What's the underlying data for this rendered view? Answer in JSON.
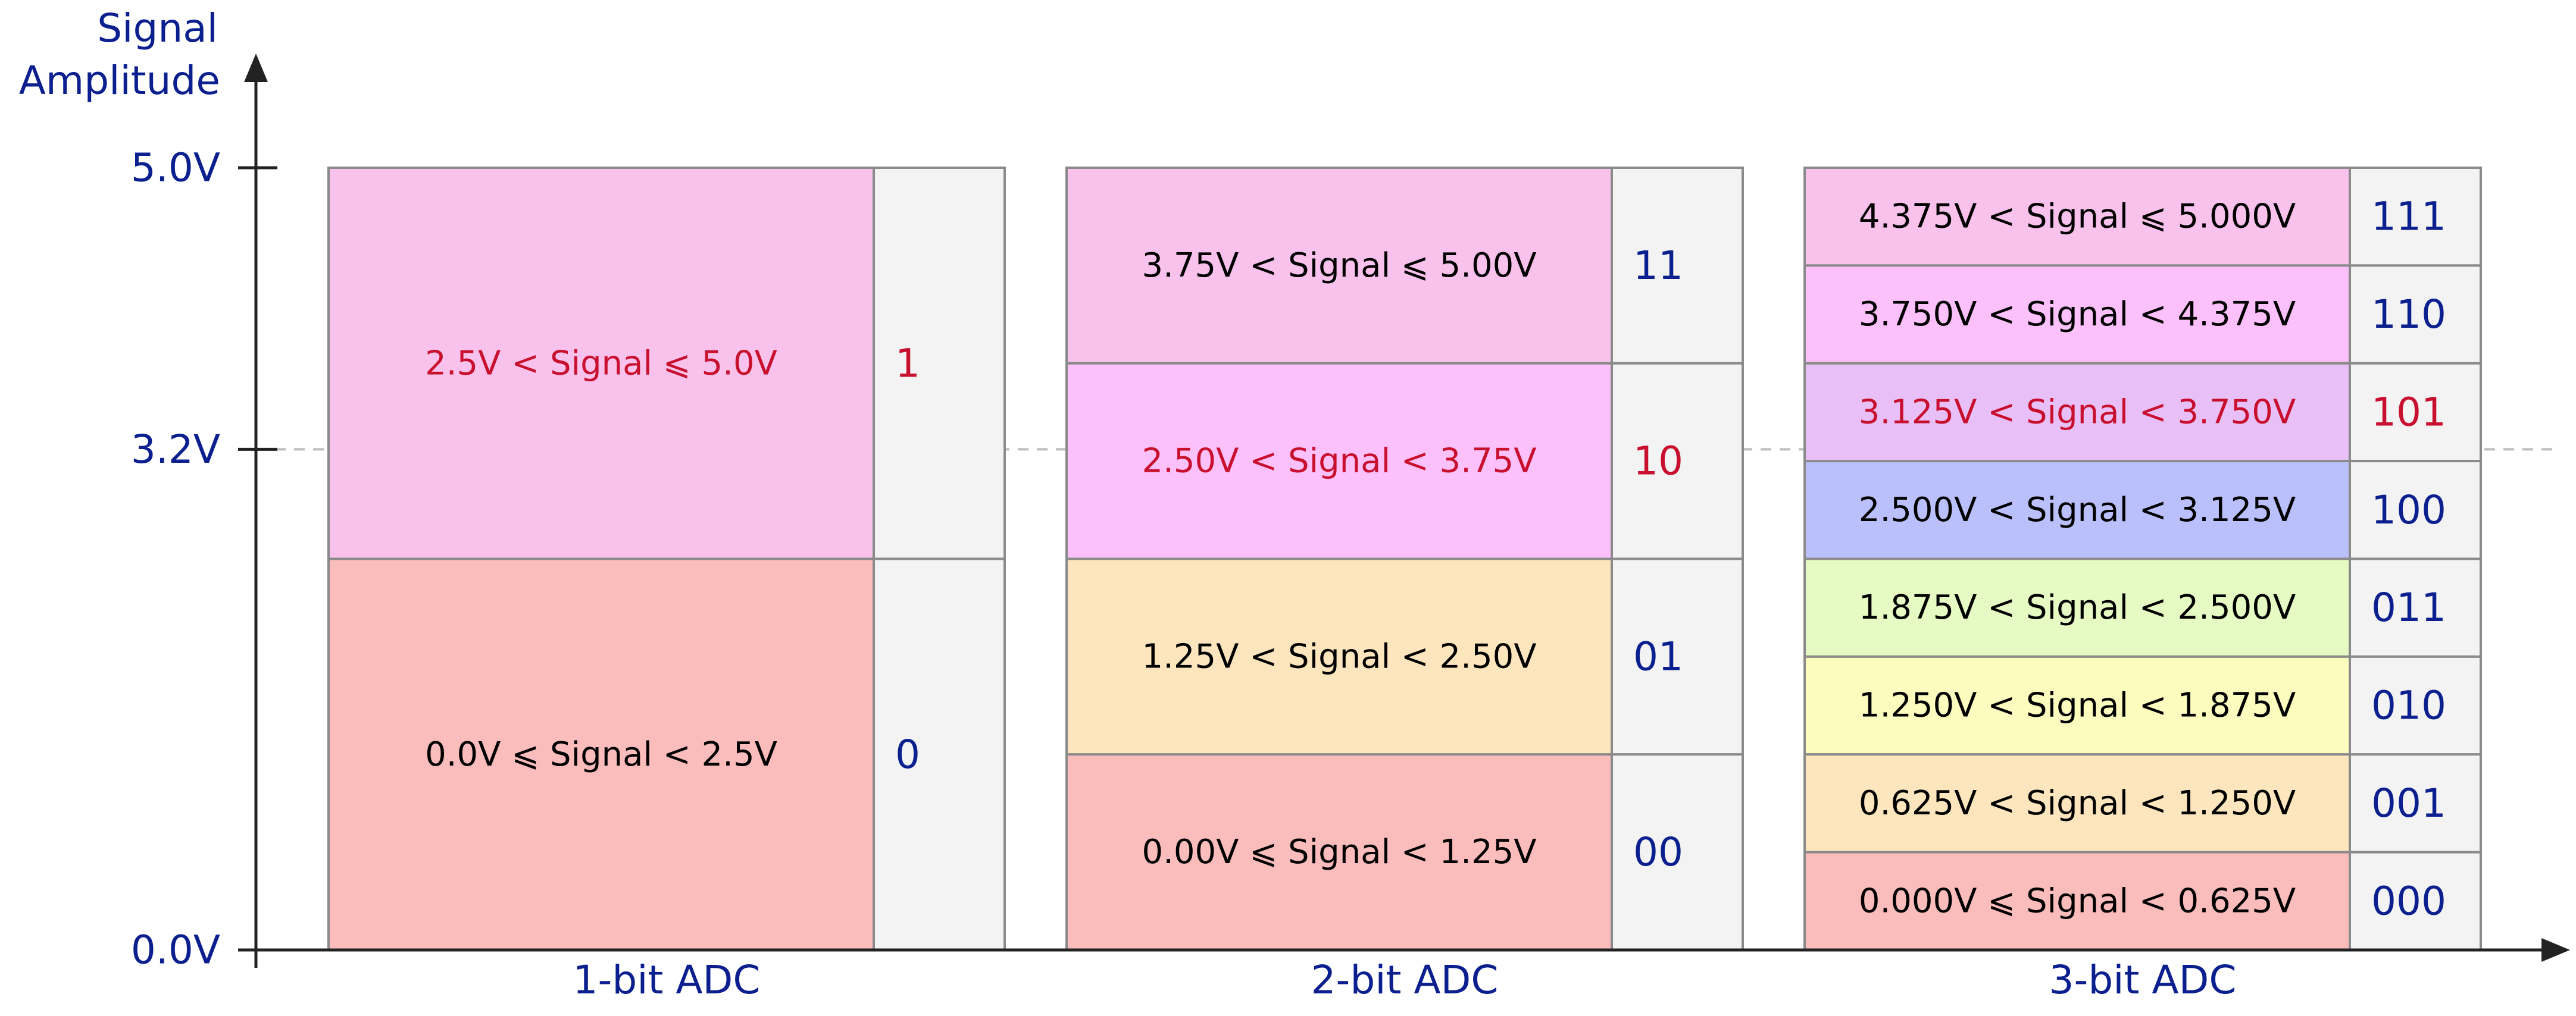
{
  "axis": {
    "y_title_line1": "Signal",
    "y_title_line2": "Amplitude",
    "ticks": [
      {
        "label": "5.0V",
        "value": 5.0
      },
      {
        "label": "3.2V",
        "value": 3.2
      },
      {
        "label": "0.0V",
        "value": 0.0
      }
    ],
    "dashed_level": 3.2
  },
  "colors": {
    "axis": "#222222",
    "axis_text": "#0b1f8f",
    "highlight_text": "#c8102e",
    "code_bg": "#f3f3f3",
    "border": "#8a8a8a",
    "dashed": "#bdbdbd"
  },
  "adcs": [
    {
      "caption": "1-bit ADC",
      "levels": [
        {
          "range": "2.5V < Signal ⩽ 5.0V",
          "code": "1",
          "lo": 2.5,
          "hi": 5.0,
          "color": "#f9c2ec",
          "highlight": true
        },
        {
          "range": "0.0V ⩽ Signal < 2.5V",
          "code": "0",
          "lo": 0.0,
          "hi": 2.5,
          "color": "#fbbcbc",
          "highlight": false
        }
      ]
    },
    {
      "caption": "2-bit ADC",
      "levels": [
        {
          "range": "3.75V < Signal ⩽ 5.00V",
          "code": "11",
          "lo": 3.75,
          "hi": 5.0,
          "color": "#f9c2ec",
          "highlight": false
        },
        {
          "range": "2.50V < Signal < 3.75V",
          "code": "10",
          "lo": 2.5,
          "hi": 3.75,
          "color": "#fcc0fb",
          "highlight": true
        },
        {
          "range": "1.25V < Signal < 2.50V",
          "code": "01",
          "lo": 1.25,
          "hi": 2.5,
          "color": "#fde6bd",
          "highlight": false
        },
        {
          "range": "0.00V ⩽ Signal < 1.25V",
          "code": "00",
          "lo": 0.0,
          "hi": 1.25,
          "color": "#fbbcbc",
          "highlight": false
        }
      ]
    },
    {
      "caption": "3-bit ADC",
      "levels": [
        {
          "range": "4.375V < Signal ⩽ 5.000V",
          "code": "111",
          "lo": 4.375,
          "hi": 5.0,
          "color": "#f9c2ec",
          "highlight": false
        },
        {
          "range": "3.750V < Signal < 4.375V",
          "code": "110",
          "lo": 3.75,
          "hi": 4.375,
          "color": "#fcc0fb",
          "highlight": false
        },
        {
          "range": "3.125V < Signal < 3.750V",
          "code": "101",
          "lo": 3.125,
          "hi": 3.75,
          "color": "#e8c0f7",
          "highlight": true
        },
        {
          "range": "2.500V < Signal < 3.125V",
          "code": "100",
          "lo": 2.5,
          "hi": 3.125,
          "color": "#b9c0fb",
          "highlight": false
        },
        {
          "range": "1.875V < Signal < 2.500V",
          "code": "011",
          "lo": 1.875,
          "hi": 2.5,
          "color": "#e6fbc3",
          "highlight": false
        },
        {
          "range": "1.250V < Signal < 1.875V",
          "code": "010",
          "lo": 1.25,
          "hi": 1.875,
          "color": "#fdfcbf",
          "highlight": false
        },
        {
          "range": "0.625V < Signal < 1.250V",
          "code": "001",
          "lo": 0.625,
          "hi": 1.25,
          "color": "#fde6bd",
          "highlight": false
        },
        {
          "range": "0.000V ⩽ Signal < 0.625V",
          "code": "000",
          "lo": 0.0,
          "hi": 0.625,
          "color": "#fbbcbc",
          "highlight": false
        }
      ]
    }
  ]
}
